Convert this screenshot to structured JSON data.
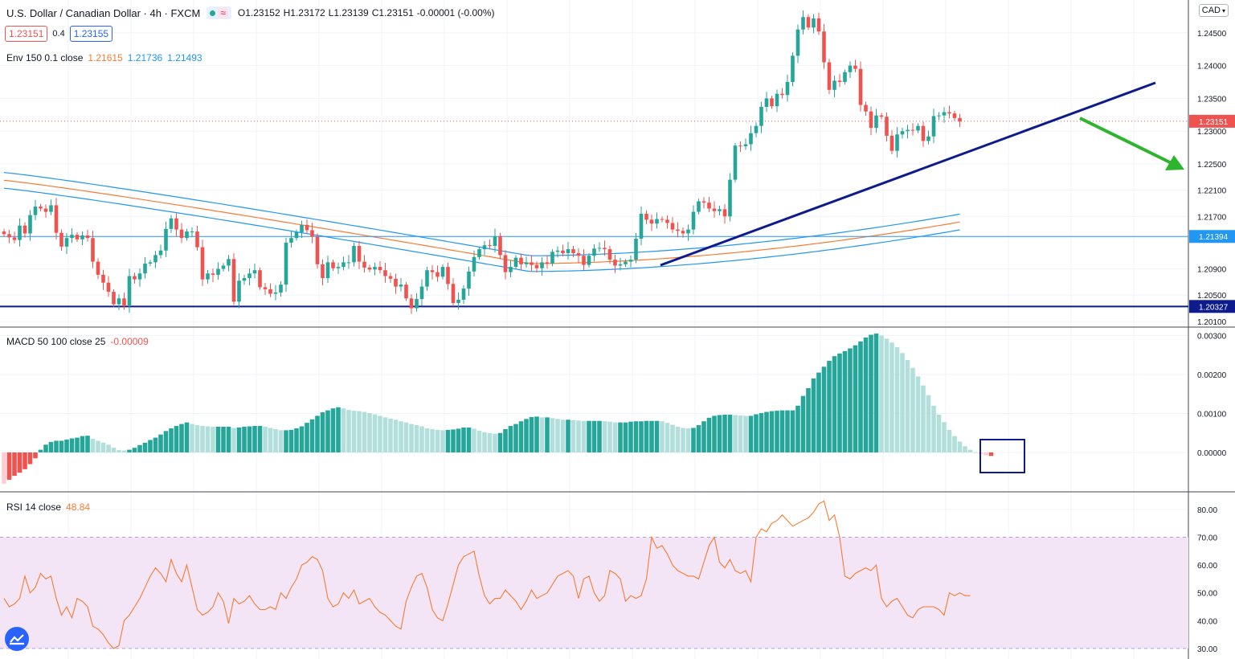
{
  "header": {
    "symbol_title": "U.S. Dollar / Canadian Dollar · 4h · FXCM",
    "ohlc": {
      "o": "O1.23152",
      "h": "H1.23172",
      "l": "L1.23139",
      "c": "C1.23151",
      "chg": "-0.00001 (-0.00%)"
    },
    "bid": "1.23151",
    "spread": "0.4",
    "ask": "1.23155",
    "currency": "CAD"
  },
  "colors": {
    "up": "#26a69a",
    "down": "#ef5350",
    "env_basis": "#f57c34",
    "env_band": "#2196f3",
    "trendline": "#0d1b8c",
    "arrow": "#2db52d",
    "hline": "#1565c0",
    "macd_up_strong": "#26a69a",
    "macd_up_weak": "#b2dfdb",
    "macd_down_weak": "#ffcdd2",
    "macd_down_strong": "#ef5350",
    "rsi": "#f57c34",
    "rsi_band": "#f3e5f5"
  },
  "indicators": {
    "env": {
      "label": "Env 150 0.1 close",
      "basis": "1.21615",
      "upper": "1.21736",
      "lower": "1.21493"
    },
    "macd": {
      "label": "MACD 50 100 close 25",
      "value": "-0.00009"
    },
    "rsi": {
      "label": "RSI 14 close",
      "value": "48.84"
    }
  },
  "price_axis": {
    "ticks": [
      "1.24500",
      "1.24000",
      "1.23500",
      "1.23000",
      "1.22500",
      "1.22100",
      "1.21700",
      "1.20900",
      "1.20500",
      "1.20100"
    ],
    "top_partial": "1",
    "last_price_label": "1.23151",
    "level_a_label": "1.21394",
    "level_b_label": "1.20327"
  },
  "macd_axis": {
    "ticks": [
      "0.00300",
      "0.00200",
      "0.00100",
      "0.00000"
    ]
  },
  "rsi_axis": {
    "ticks": [
      "80.00",
      "70.00",
      "60.00",
      "50.00",
      "40.00",
      "30.00"
    ]
  },
  "chart_data": [
    {
      "type": "candlestick",
      "title": "",
      "ylim": [
        1.2,
        1.25
      ],
      "levels": [
        1.21394,
        1.20327
      ],
      "last_price": 1.23151,
      "closes": [
        1.2143,
        1.2138,
        1.2134,
        1.2156,
        1.2144,
        1.2172,
        1.2185,
        1.2182,
        1.2177,
        1.2187,
        1.2145,
        1.2124,
        1.2137,
        1.2142,
        1.2135,
        1.2141,
        1.2137,
        1.2101,
        1.2081,
        1.2069,
        1.2055,
        1.2036,
        1.2045,
        1.2033,
        1.2079,
        1.2074,
        1.2083,
        1.2098,
        1.21,
        1.2111,
        1.2118,
        1.2151,
        1.2167,
        1.215,
        1.2137,
        1.2147,
        1.2147,
        1.2123,
        1.2074,
        1.2083,
        1.2081,
        1.209,
        1.2095,
        1.2105,
        1.204,
        1.2072,
        1.2076,
        1.2083,
        1.2088,
        1.2062,
        1.2059,
        1.2052,
        1.2054,
        1.2066,
        1.213,
        1.2137,
        1.2146,
        1.2157,
        1.2149,
        1.2139,
        1.2097,
        1.2076,
        1.21,
        1.2091,
        1.2093,
        1.21,
        1.21,
        1.2125,
        1.2101,
        1.2092,
        1.2089,
        1.2093,
        1.2088,
        1.2079,
        1.2075,
        1.2063,
        1.2066,
        1.2045,
        1.203,
        1.2044,
        1.2063,
        1.2088,
        1.2085,
        1.2078,
        1.2093,
        1.2067,
        1.2038,
        1.2043,
        1.206,
        1.2086,
        1.2108,
        1.212,
        1.2126,
        1.2125,
        1.214,
        1.2111,
        1.2085,
        1.2093,
        1.2107,
        1.2097,
        1.21,
        1.2096,
        1.2091,
        1.21,
        1.2098,
        1.2116,
        1.2118,
        1.2114,
        1.212,
        1.2114,
        1.211,
        1.2096,
        1.211,
        1.2121,
        1.2122,
        1.212,
        1.2104,
        1.2095,
        1.2097,
        1.2101,
        1.2104,
        1.2136,
        1.2174,
        1.2165,
        1.2159,
        1.2166,
        1.2165,
        1.216,
        1.215,
        1.2148,
        1.2144,
        1.215,
        1.2177,
        1.2193,
        1.2191,
        1.2182,
        1.2178,
        1.2181,
        1.217,
        1.2226,
        1.2278,
        1.2277,
        1.228,
        1.2297,
        1.2308,
        1.2337,
        1.235,
        1.2338,
        1.2357,
        1.2355,
        1.2375,
        1.2415,
        1.2455,
        1.2474,
        1.2458,
        1.2472,
        1.2452,
        1.2405,
        1.2363,
        1.2377,
        1.2375,
        1.239,
        1.24,
        1.2395,
        1.234,
        1.233,
        1.2305,
        1.2324,
        1.2322,
        1.2293,
        1.227,
        1.2295,
        1.23,
        1.2302,
        1.2301,
        1.2308,
        1.2285,
        1.2292,
        1.2323,
        1.2324,
        1.2329,
        1.2327,
        1.232,
        1.2315
      ],
      "envelope": {
        "upper_end": 1.21736,
        "basis_end": 1.21615,
        "lower_end": 1.21493
      }
    },
    {
      "type": "bar",
      "title": "",
      "ylim": [
        -0.0008,
        0.0031
      ],
      "values": [
        -0.0008,
        -0.0007,
        -0.0006,
        -0.00052,
        -0.00043,
        -0.0003,
        -0.00015,
        7e-05,
        0.0002,
        0.00027,
        0.0003,
        0.0003,
        0.00033,
        0.00036,
        0.00038,
        0.00042,
        0.00043,
        0.00035,
        0.0003,
        0.00025,
        0.0002,
        0.00012,
        6e-05,
        5e-05,
        7e-05,
        0.00012,
        0.00019,
        0.00025,
        0.00032,
        0.00038,
        0.00046,
        0.00055,
        0.00062,
        0.00068,
        0.00073,
        0.00077,
        0.00073,
        0.0007,
        0.00068,
        0.00067,
        0.00066,
        0.00066,
        0.00066,
        0.00066,
        0.00063,
        0.00064,
        0.00066,
        0.00067,
        0.00068,
        0.00068,
        0.00066,
        0.00063,
        0.0006,
        0.00057,
        0.00057,
        0.00058,
        0.00062,
        0.00067,
        0.00076,
        0.00085,
        0.00094,
        0.00103,
        0.00108,
        0.00113,
        0.00116,
        0.00113,
        0.00109,
        0.00107,
        0.00106,
        0.00104,
        0.00101,
        0.00098,
        0.00094,
        0.0009,
        0.00087,
        0.00084,
        0.0008,
        0.00077,
        0.00073,
        0.0007,
        0.00067,
        0.00062,
        0.0006,
        0.00058,
        0.00057,
        0.00058,
        0.00059,
        0.00061,
        0.00064,
        0.00064,
        0.00061,
        0.00056,
        0.00052,
        0.0005,
        0.00048,
        0.0005,
        0.0006,
        0.00068,
        0.00073,
        0.0008,
        0.00086,
        0.00091,
        0.00092,
        0.0009,
        0.0009,
        0.00088,
        0.00086,
        0.00084,
        0.00084,
        0.00083,
        0.00082,
        0.00081,
        0.00081,
        0.00081,
        0.00081,
        0.0008,
        0.00079,
        0.00077,
        0.00077,
        0.00077,
        0.00079,
        0.0008,
        0.0008,
        0.00081,
        0.00081,
        0.00081,
        0.0008,
        0.00076,
        0.00071,
        0.00066,
        0.00063,
        0.00062,
        0.00063,
        0.0007,
        0.0008,
        0.00089,
        0.00094,
        0.00096,
        0.00097,
        0.00097,
        0.00096,
        0.00095,
        0.00094,
        0.00094,
        0.00098,
        0.00101,
        0.00104,
        0.00106,
        0.00107,
        0.00108,
        0.00108,
        0.00108,
        0.0012,
        0.00145,
        0.00165,
        0.0019,
        0.00205,
        0.0022,
        0.00235,
        0.00247,
        0.00254,
        0.0026,
        0.00267,
        0.00275,
        0.00285,
        0.00295,
        0.00302,
        0.00305,
        0.003,
        0.00292,
        0.00282,
        0.0027,
        0.00255,
        0.00237,
        0.00217,
        0.00195,
        0.00172,
        0.00147,
        0.0012,
        0.00097,
        0.00078,
        0.00058,
        0.00042,
        0.00028,
        0.00016,
        7e-05,
        1e-05,
        -4e-05,
        -7e-05,
        -9e-05
      ]
    },
    {
      "type": "line",
      "title": "",
      "ylim": [
        29.5,
        84
      ],
      "bands": [
        30,
        70
      ],
      "values": [
        48,
        45,
        46,
        48,
        56,
        50,
        52,
        57,
        55,
        56,
        48,
        42,
        45,
        41,
        48,
        47,
        45,
        38,
        37,
        35,
        32,
        30,
        31,
        40,
        42,
        45,
        48,
        52,
        56,
        59,
        57,
        54,
        62,
        57,
        54,
        60,
        52,
        44,
        42,
        43,
        45,
        50,
        47,
        39,
        48,
        46,
        47,
        49,
        46,
        44,
        44,
        45,
        44,
        50,
        48,
        52,
        55,
        60,
        61,
        63,
        62,
        58,
        48,
        45,
        46,
        50,
        48,
        51,
        46,
        47,
        48,
        45,
        43,
        42,
        40,
        38,
        37,
        47,
        52,
        56,
        57,
        52,
        44,
        41,
        40,
        46,
        53,
        60,
        63,
        64,
        65,
        56,
        49,
        46,
        48,
        48,
        51,
        49,
        47,
        44,
        47,
        51,
        48,
        49,
        50,
        53,
        56,
        57,
        58,
        56,
        48,
        55,
        56,
        50,
        47,
        49,
        58,
        57,
        55,
        47,
        49,
        48,
        49,
        55,
        70,
        66,
        67,
        64,
        60,
        58,
        57,
        56,
        56,
        55,
        61,
        67,
        70,
        61,
        59,
        62,
        58,
        57,
        58,
        54,
        70,
        73,
        72,
        75,
        76,
        78,
        76,
        74,
        75,
        76,
        77,
        79,
        82,
        83,
        76,
        78,
        70,
        56,
        55,
        57,
        58,
        59,
        58,
        60,
        48,
        45,
        47,
        48,
        45,
        42,
        41,
        44,
        45,
        45,
        45,
        44,
        42,
        50,
        49,
        50,
        49,
        49
      ]
    }
  ]
}
